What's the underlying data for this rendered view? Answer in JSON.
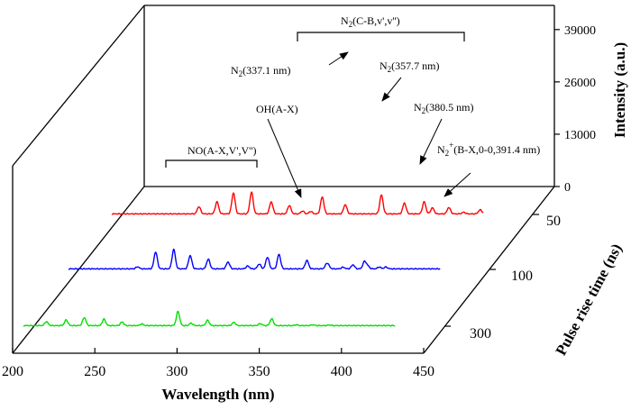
{
  "chart_data": {
    "type": "line",
    "style": "3d-waterfall",
    "xlabel": "Wavelength (nm)",
    "ylabel": "Pulse rise time (ns)",
    "zlabel": "Intensity (a.u.)",
    "xlim": [
      200,
      450
    ],
    "x_ticks": [
      "200",
      "250",
      "300",
      "350",
      "400",
      "450"
    ],
    "y_categories": [
      "50",
      "100",
      "300"
    ],
    "zlim": [
      0,
      45000
    ],
    "z_ticks": [
      {
        "value": 0,
        "label": "0"
      },
      {
        "value": 13000,
        "label": "13000"
      },
      {
        "value": 26000,
        "label": "26000"
      },
      {
        "value": 39000,
        "label": "39000"
      }
    ],
    "series": [
      {
        "name": "50",
        "color": "#ff0000",
        "peaks": [
          [
            266,
            1800
          ],
          [
            277,
            3000
          ],
          [
            287,
            5200
          ],
          [
            298,
            5400
          ],
          [
            310,
            3000
          ],
          [
            321,
            2100
          ],
          [
            329,
            700
          ],
          [
            334,
            600
          ],
          [
            341,
            4200
          ],
          [
            355,
            2300
          ],
          [
            377,
            4700
          ],
          [
            391,
            2700
          ],
          [
            403,
            3000
          ],
          [
            408,
            1500
          ],
          [
            418,
            1600
          ],
          [
            427,
            400
          ],
          [
            437,
            1000
          ],
          [
            440,
            400
          ],
          [
            452,
            350
          ]
        ]
      },
      {
        "name": "100",
        "color": "#0000ff",
        "peaks": [
          [
            255,
            500
          ],
          [
            266,
            4200
          ],
          [
            277,
            4800
          ],
          [
            287,
            3300
          ],
          [
            298,
            2400
          ],
          [
            310,
            1700
          ],
          [
            322,
            700
          ],
          [
            329,
            1200
          ],
          [
            334,
            2900
          ],
          [
            341,
            3600
          ],
          [
            358,
            2100
          ],
          [
            370,
            1000
          ],
          [
            371,
            600
          ],
          [
            380,
            400
          ],
          [
            386,
            1000
          ],
          [
            393,
            1800
          ],
          [
            395,
            700
          ],
          [
            402,
            450
          ],
          [
            406,
            450
          ]
        ]
      },
      {
        "name": "300",
        "color": "#00e000",
        "peaks": [
          [
            232,
            1000
          ],
          [
            244,
            1400
          ],
          [
            255,
            2000
          ],
          [
            267,
            1600
          ],
          [
            278,
            900
          ],
          [
            290,
            400
          ],
          [
            312,
            3500
          ],
          [
            320,
            600
          ],
          [
            330,
            1300
          ],
          [
            346,
            800
          ],
          [
            362,
            500
          ],
          [
            369,
            1700
          ],
          [
            384,
            200
          ],
          [
            394,
            200
          ],
          [
            404,
            150
          ]
        ]
      }
    ],
    "annotations": {
      "n2_band": "N2(C-B,v',v'')",
      "no_band": "NO(A-X,V',V'')",
      "oh": "OH(A-X)",
      "n2_337": "N2(337.1 nm)",
      "n2_357": "N2(357.7 nm)",
      "n2_380": "N2(380.5 nm)",
      "n2plus": "N2+(B-X,0-0,391.4 nm)"
    }
  },
  "labels": {
    "xlabel": "Wavelength (nm)",
    "ylabel": "Pulse rise time (ns)",
    "zlabel": "Intensity (a.u.)"
  }
}
